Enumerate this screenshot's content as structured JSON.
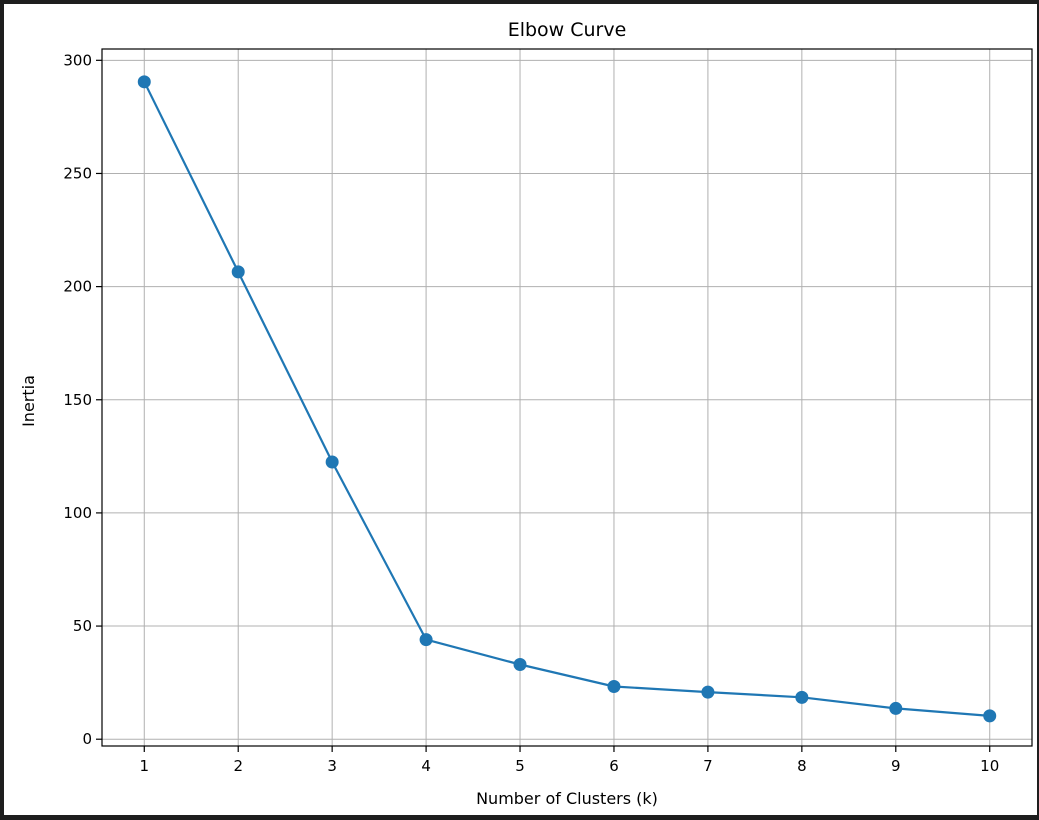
{
  "chart_data": {
    "type": "line",
    "title": "Elbow Curve",
    "xlabel": "Number of Clusters (k)",
    "ylabel": "Inertia",
    "xlim": [
      0.55,
      10.45
    ],
    "ylim": [
      -3,
      305
    ],
    "xticks": [
      1,
      2,
      3,
      4,
      5,
      6,
      7,
      8,
      9,
      10
    ],
    "xtick_labels": [
      "1",
      "2",
      "3",
      "4",
      "5",
      "6",
      "7",
      "8",
      "9",
      "10"
    ],
    "yticks": [
      0,
      50,
      100,
      150,
      200,
      250,
      300
    ],
    "ytick_labels": [
      "0",
      "50",
      "100",
      "150",
      "200",
      "250",
      "300"
    ],
    "grid": true,
    "series": [
      {
        "x": [
          1,
          2,
          3,
          4,
          5,
          6,
          7,
          8,
          9,
          10
        ],
        "values": [
          290.5,
          206.5,
          122.5,
          44,
          33,
          23.3,
          20.8,
          18.5,
          13.6,
          10.3
        ],
        "color": "#1f77b4",
        "marker": "circle"
      }
    ]
  }
}
